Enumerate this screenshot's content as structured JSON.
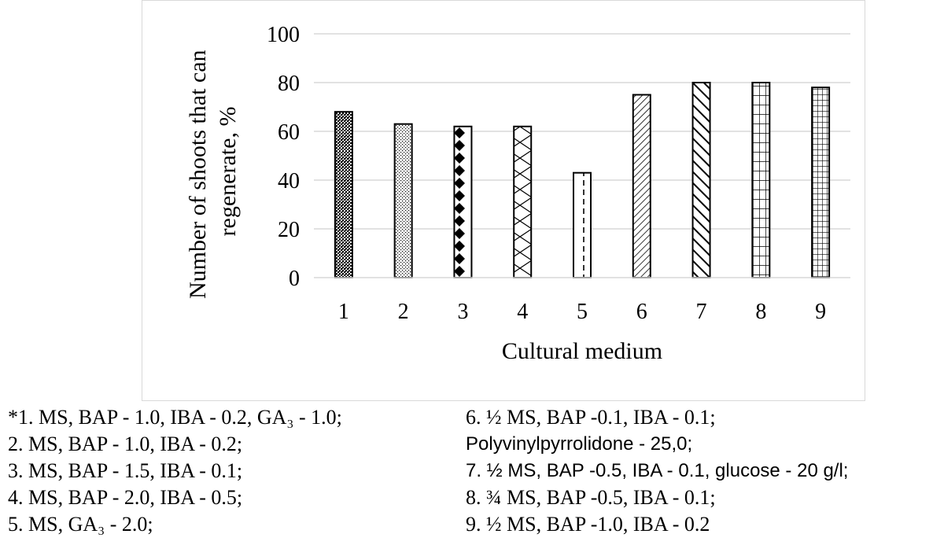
{
  "chart_data": {
    "type": "bar",
    "categories": [
      "1",
      "2",
      "3",
      "4",
      "5",
      "6",
      "7",
      "8",
      "9"
    ],
    "values": [
      68,
      63,
      62,
      62,
      43,
      75,
      80,
      80,
      78
    ],
    "patterns": [
      "dense-dots",
      "fine-dots",
      "diamonds",
      "zigzag",
      "dashed-vertical",
      "diagonal-lines",
      "wide-diagonal",
      "large-grid",
      "small-grid"
    ],
    "title": "",
    "xlabel": "Cultural medium",
    "ylabel_lines": [
      "Number of shoots that can",
      "regenerate, %"
    ],
    "ylim": [
      0,
      100
    ],
    "yticks": [
      "0",
      "20",
      "40",
      "60",
      "80",
      "100"
    ],
    "grid": true,
    "colors": {
      "bar_stroke": "#000000",
      "bar_fill": "#ffffff",
      "grid": "#d9d9d9",
      "frame": "#d9d9d9"
    }
  },
  "caption": {
    "left": [
      "*1. MS, BAP - 1.0, IBA - 0.2, GA₃ - 1.0;",
      "2. MS, BAP - 1.0, IBA - 0.2;",
      "3. MS, BAP - 1.5, IBA - 0.1;",
      "4. MS, BAP - 2.0, IBA - 0.5;",
      "5. MS, GA₃ - 2.0;"
    ],
    "right": [
      "6. ½ MS, BAP -0.1, IBA - 0.1;",
      "Polyvinylpyrrolidone - 25,0;",
      "7. ½ MS, BAP -0.5, IBA - 0.1, glucose - 20 g/l;",
      "8. ¾ MS, BAP -0.5, IBA - 0.1;",
      "9. ½ MS, BAP -1.0, IBA - 0.2"
    ]
  }
}
